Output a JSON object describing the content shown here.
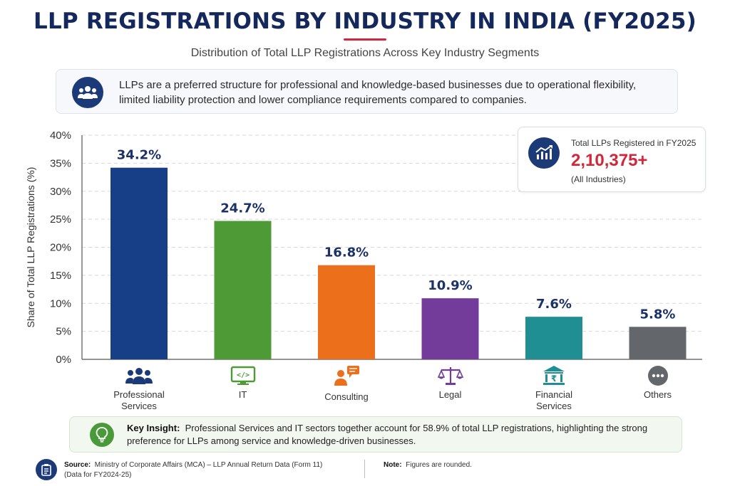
{
  "header": {
    "title": "LLP REGISTRATIONS BY INDUSTRY IN INDIA (FY2025)",
    "subtitle": "Distribution of Total LLP Registrations Across Key Industry Segments"
  },
  "info": {
    "text": "LLPs are a preferred structure for professional and knowledge-based businesses due to operational flexibility, limited liability protection and lower compliance requirements compared to companies.",
    "icon": "people-group-icon"
  },
  "total": {
    "label": "Total LLPs Registered in FY2025",
    "value": "2,10,375+",
    "sub": "(All Industries)",
    "icon": "growth-chart-icon"
  },
  "chart_data": {
    "type": "bar",
    "ylabel": "Share of Total LLP Registrations (%)",
    "xlabel": "",
    "ylim": [
      0,
      40
    ],
    "yticks": [
      "0%",
      "5%",
      "10%",
      "15%",
      "20%",
      "25%",
      "30%",
      "35%",
      "40%"
    ],
    "grid": true,
    "categories": [
      "Professional Services",
      "IT",
      "Consulting",
      "Legal",
      "Financial Services",
      "Others"
    ],
    "category_lines": [
      [
        "Professional",
        "Services"
      ],
      [
        "IT"
      ],
      [
        "Consulting"
      ],
      [
        "Legal"
      ],
      [
        "Financial",
        "Services"
      ],
      [
        "Others"
      ]
    ],
    "values": [
      34.2,
      24.7,
      16.8,
      10.9,
      7.6,
      5.8
    ],
    "value_labels": [
      "34.2%",
      "24.7%",
      "16.8%",
      "10.9%",
      "7.6%",
      "5.8%"
    ],
    "colors": [
      "#173f88",
      "#4d9a36",
      "#ec6f1c",
      "#743c9a",
      "#1f8f93",
      "#63676c"
    ],
    "icons": [
      "people-group-icon",
      "code-monitor-icon",
      "consultant-chat-icon",
      "scales-icon",
      "bank-rupee-icon",
      "more-dots-icon"
    ]
  },
  "insight": {
    "label": "Key Insight:",
    "text": "Professional Services and IT sectors together account for 58.9% of total LLP registrations, highlighting the strong preference for LLPs among service and knowledge-driven businesses.",
    "icon": "lightbulb-icon"
  },
  "footer": {
    "source_label": "Source:",
    "source_text": "Ministry of Corporate Affairs (MCA) – LLP Annual Return Data (Form 11)",
    "source_text2": "(Data for FY2024-25)",
    "note_label": "Note:",
    "note_text": "Figures are rounded.",
    "icon": "clipboard-icon"
  }
}
